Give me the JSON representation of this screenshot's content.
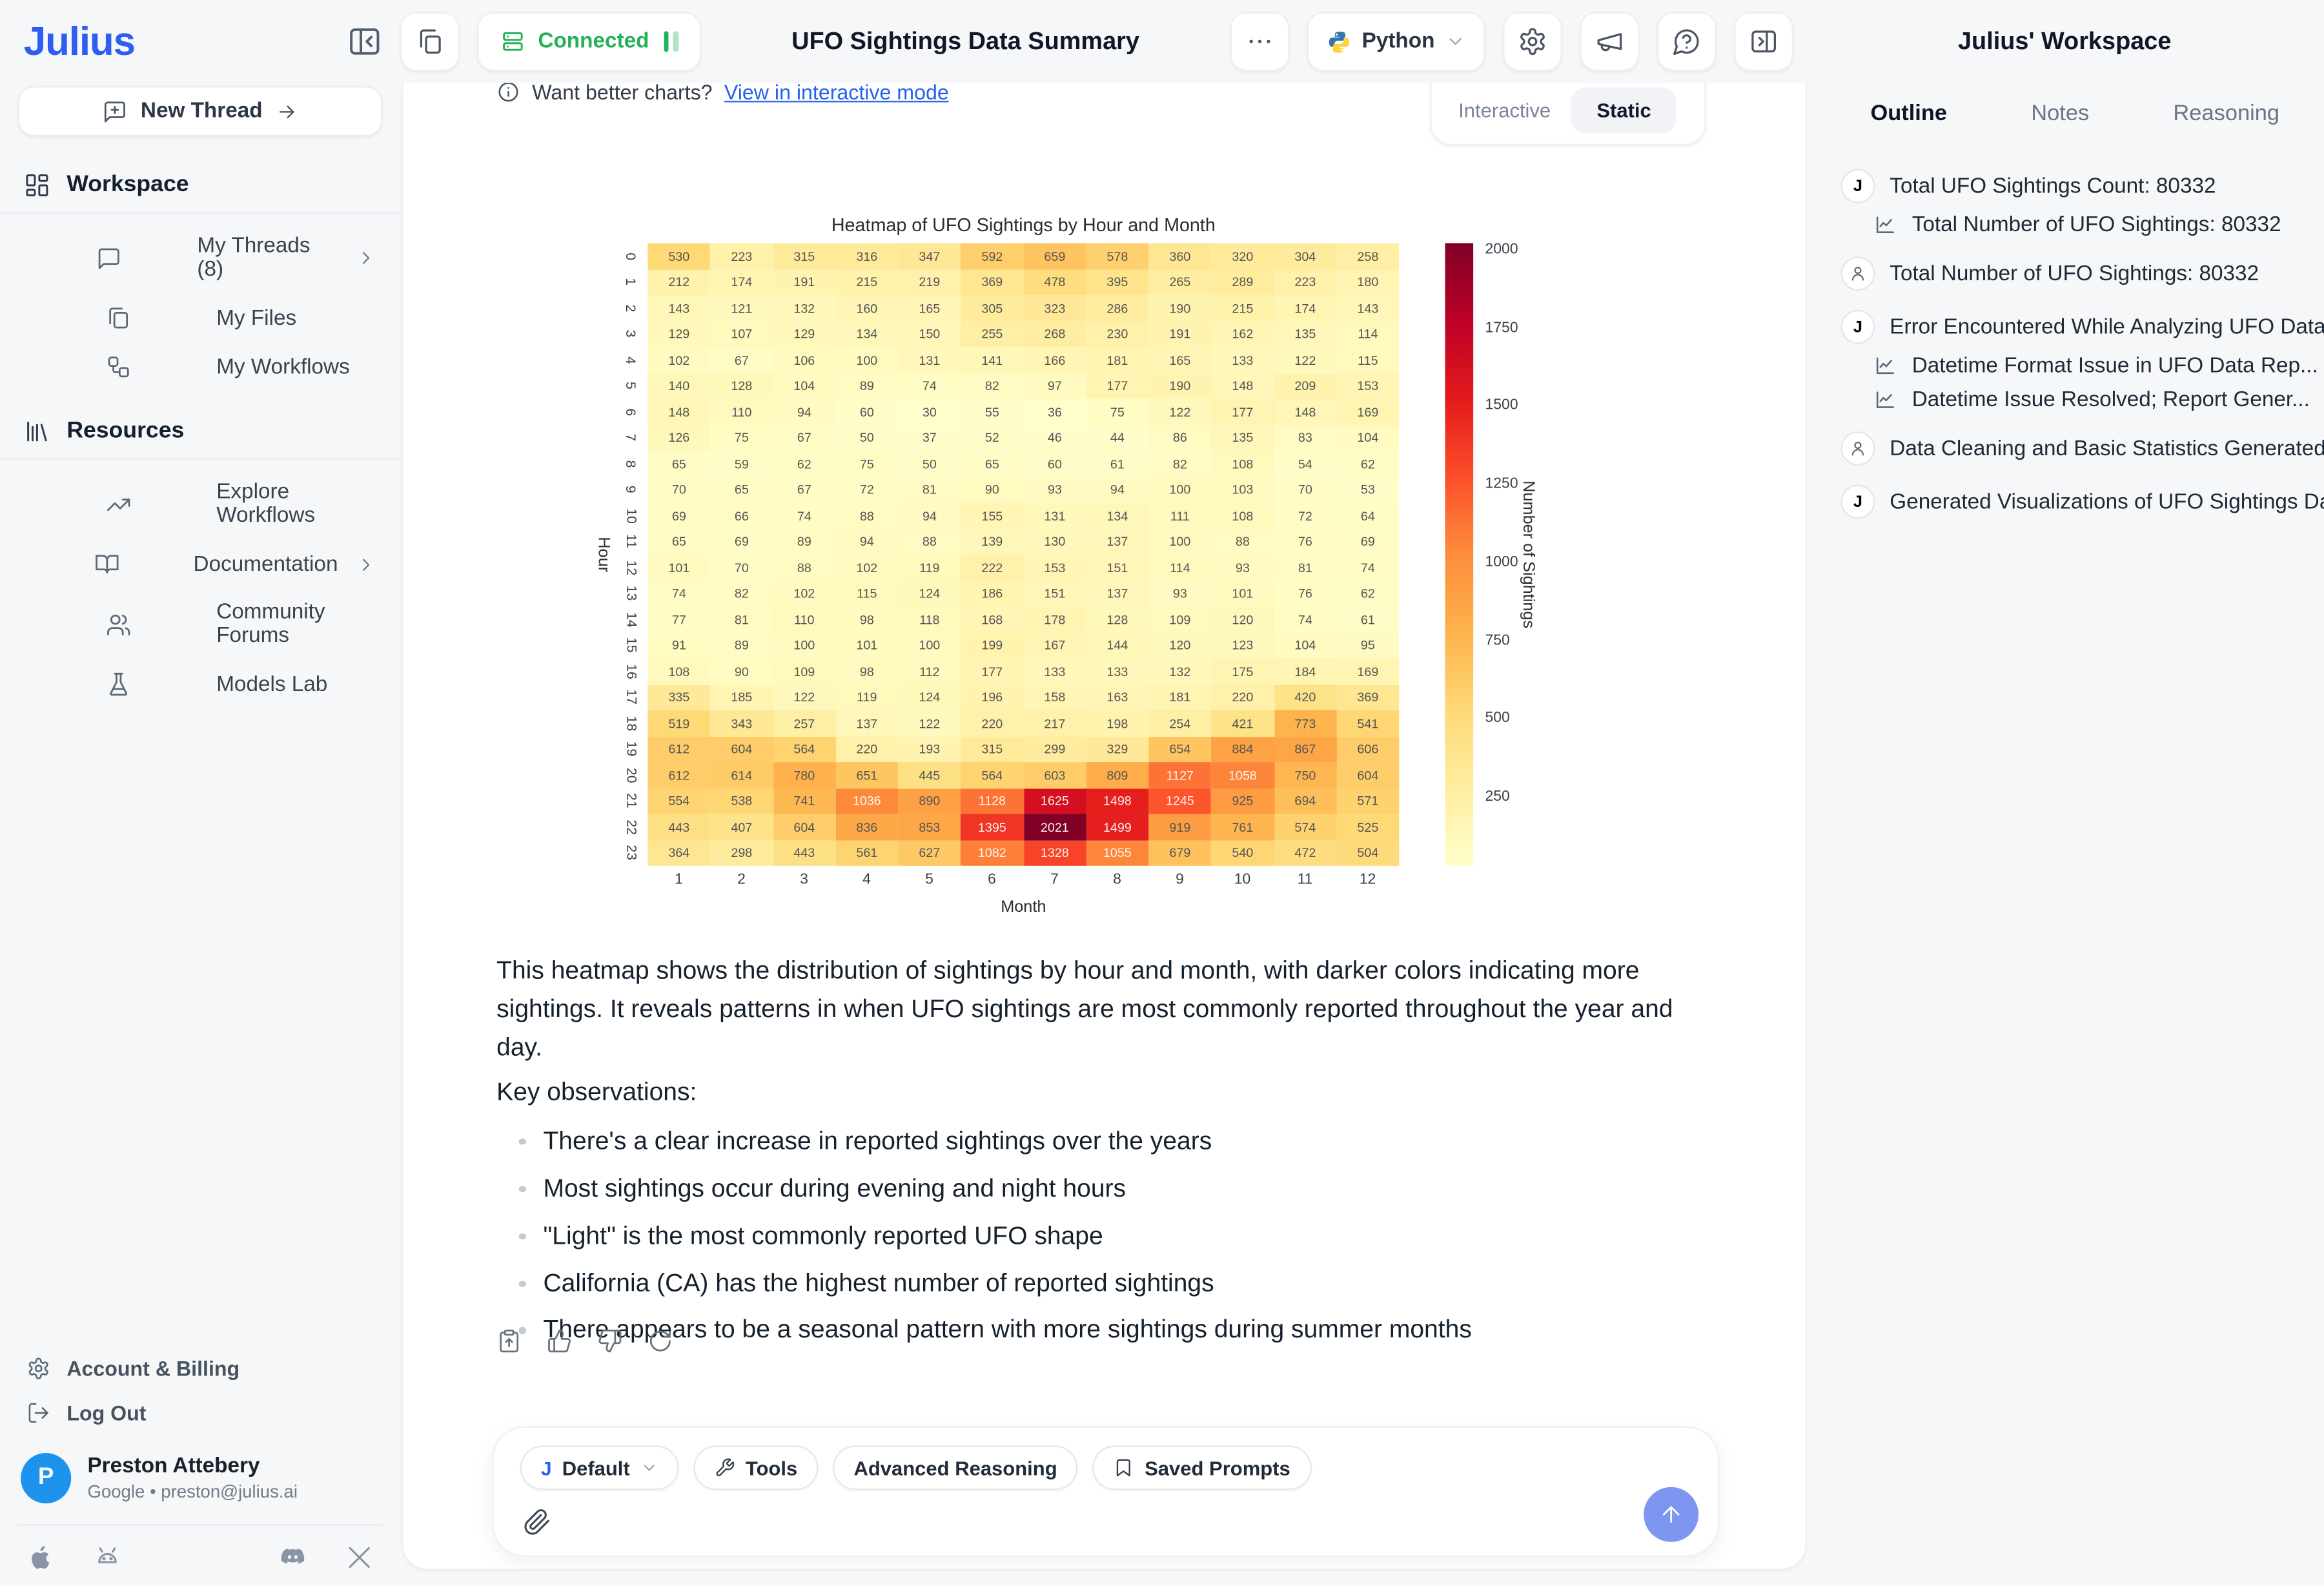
{
  "header": {
    "logo": "Julius",
    "connected_label": "Connected",
    "doc_title": "UFO Sightings Data Summary",
    "python_label": "Python",
    "workspace_title": "Julius' Workspace"
  },
  "sidebar": {
    "new_thread_label": "New Thread",
    "sections": [
      {
        "label": "Workspace",
        "icon": "grid",
        "items": [
          {
            "icon": "chat",
            "label": "My Threads (8)",
            "chevron": true
          },
          {
            "icon": "files",
            "label": "My Files"
          },
          {
            "icon": "workflow",
            "label": "My Workflows"
          }
        ]
      },
      {
        "label": "Resources",
        "icon": "library",
        "items": [
          {
            "icon": "trend",
            "label": "Explore Workflows"
          },
          {
            "icon": "book",
            "label": "Documentation",
            "chevron": true
          },
          {
            "icon": "users",
            "label": "Community Forums"
          },
          {
            "icon": "flask",
            "label": "Models Lab"
          }
        ]
      }
    ],
    "footer_items": [
      {
        "icon": "gear",
        "label": "Account & Billing"
      },
      {
        "icon": "logout",
        "label": "Log Out"
      }
    ],
    "profile": {
      "initial": "P",
      "name": "Preston Attebery",
      "meta": "Google • preston@julius.ai"
    }
  },
  "rightbar": {
    "tabs": [
      "Outline",
      "Notes",
      "Reasoning"
    ],
    "active_tab": "Outline",
    "items": [
      {
        "icon": "julius",
        "text": "Total UFO Sightings Count: 80332",
        "sub": false
      },
      {
        "icon": "chart",
        "text": "Total Number of UFO Sightings: 80332",
        "sub": true
      },
      {
        "icon": "person",
        "text": "Total Number of UFO Sightings: 80332",
        "sub": false
      },
      {
        "icon": "julius",
        "text": "Error Encountered While Analyzing UFO Data",
        "sub": false
      },
      {
        "icon": "chart",
        "text": "Datetime Format Issue in UFO Data Rep...",
        "sub": true
      },
      {
        "icon": "chart",
        "text": "Datetime Issue Resolved; Report Gener...",
        "sub": true
      },
      {
        "icon": "person",
        "text": "Data Cleaning and Basic Statistics Generated",
        "sub": false
      },
      {
        "icon": "julius",
        "text": "Generated Visualizations of UFO Sightings Data",
        "sub": false
      }
    ]
  },
  "content": {
    "banner_question": "Want better charts?",
    "banner_link": "View in interactive mode",
    "toggle_options": [
      "Interactive",
      "Static"
    ],
    "toggle_active": "Static",
    "paragraph": "This heatmap shows the distribution of sightings by hour and month, with darker colors indicating more sightings. It reveals patterns in when UFO sightings are most commonly reported throughout the year and day.",
    "kicker": "Key observations:",
    "bullets": [
      "There's a clear increase in reported sightings over the years",
      "Most sightings occur during evening and night hours",
      "\"Light\" is the most commonly reported UFO shape",
      "California (CA) has the highest number of reported sightings",
      "There appears to be a seasonal pattern with more sightings during summer months"
    ],
    "composer": {
      "model_label": "Default",
      "tools_label": "Tools",
      "advanced_label": "Advanced Reasoning",
      "saved_label": "Saved Prompts",
      "input_value": ""
    }
  },
  "chart_data": {
    "type": "heatmap",
    "title": "Heatmap of UFO Sightings by Hour and Month",
    "xlabel": "Month",
    "ylabel": "Hour",
    "x": [
      1,
      2,
      3,
      4,
      5,
      6,
      7,
      8,
      9,
      10,
      11,
      12
    ],
    "y": [
      0,
      1,
      2,
      3,
      4,
      5,
      6,
      7,
      8,
      9,
      10,
      11,
      12,
      13,
      14,
      15,
      16,
      17,
      18,
      19,
      20,
      21,
      22,
      23
    ],
    "colorbar_label": "Number of Sightings",
    "colorbar_ticks": [
      250,
      500,
      750,
      1000,
      1250,
      1500,
      1750,
      2000
    ],
    "vmin": 30,
    "vmax": 2021,
    "colormap": "YlOrRd",
    "values": [
      [
        530,
        223,
        315,
        316,
        347,
        592,
        659,
        578,
        360,
        320,
        304,
        258
      ],
      [
        212,
        174,
        191,
        215,
        219,
        369,
        478,
        395,
        265,
        289,
        223,
        180
      ],
      [
        143,
        121,
        132,
        160,
        165,
        305,
        323,
        286,
        190,
        215,
        174,
        143
      ],
      [
        129,
        107,
        129,
        134,
        150,
        255,
        268,
        230,
        191,
        162,
        135,
        114
      ],
      [
        102,
        67,
        106,
        100,
        131,
        141,
        166,
        181,
        165,
        133,
        122,
        115
      ],
      [
        140,
        128,
        104,
        89,
        74,
        82,
        97,
        177,
        190,
        148,
        209,
        153
      ],
      [
        148,
        110,
        94,
        60,
        30,
        55,
        36,
        75,
        122,
        177,
        148,
        169
      ],
      [
        126,
        75,
        67,
        50,
        37,
        52,
        46,
        44,
        86,
        135,
        83,
        104
      ],
      [
        65,
        59,
        62,
        75,
        50,
        65,
        60,
        61,
        82,
        108,
        54,
        62
      ],
      [
        70,
        65,
        67,
        72,
        81,
        90,
        93,
        94,
        100,
        103,
        70,
        53
      ],
      [
        69,
        66,
        74,
        88,
        94,
        155,
        131,
        134,
        111,
        108,
        72,
        64
      ],
      [
        65,
        69,
        89,
        94,
        88,
        139,
        130,
        137,
        100,
        88,
        76,
        69
      ],
      [
        101,
        70,
        88,
        102,
        119,
        222,
        153,
        151,
        114,
        93,
        81,
        74
      ],
      [
        74,
        82,
        102,
        115,
        124,
        186,
        151,
        137,
        93,
        101,
        76,
        62
      ],
      [
        77,
        81,
        110,
        98,
        118,
        168,
        178,
        128,
        109,
        120,
        74,
        61
      ],
      [
        91,
        89,
        100,
        101,
        100,
        199,
        167,
        144,
        120,
        123,
        104,
        95
      ],
      [
        108,
        90,
        109,
        98,
        112,
        177,
        133,
        133,
        132,
        175,
        184,
        169
      ],
      [
        335,
        185,
        122,
        119,
        124,
        196,
        158,
        163,
        181,
        220,
        420,
        369
      ],
      [
        519,
        343,
        257,
        137,
        122,
        220,
        217,
        198,
        254,
        421,
        773,
        541
      ],
      [
        612,
        604,
        564,
        220,
        193,
        315,
        299,
        329,
        654,
        884,
        867,
        606
      ],
      [
        612,
        614,
        780,
        651,
        445,
        564,
        603,
        809,
        1127,
        1058,
        750,
        604
      ],
      [
        554,
        538,
        741,
        1036,
        890,
        1128,
        1625,
        1498,
        1245,
        925,
        694,
        571
      ],
      [
        443,
        407,
        604,
        836,
        853,
        1395,
        2021,
        1499,
        919,
        761,
        574,
        525
      ],
      [
        364,
        298,
        443,
        561,
        627,
        1082,
        1328,
        1055,
        679,
        540,
        472,
        504
      ]
    ]
  }
}
